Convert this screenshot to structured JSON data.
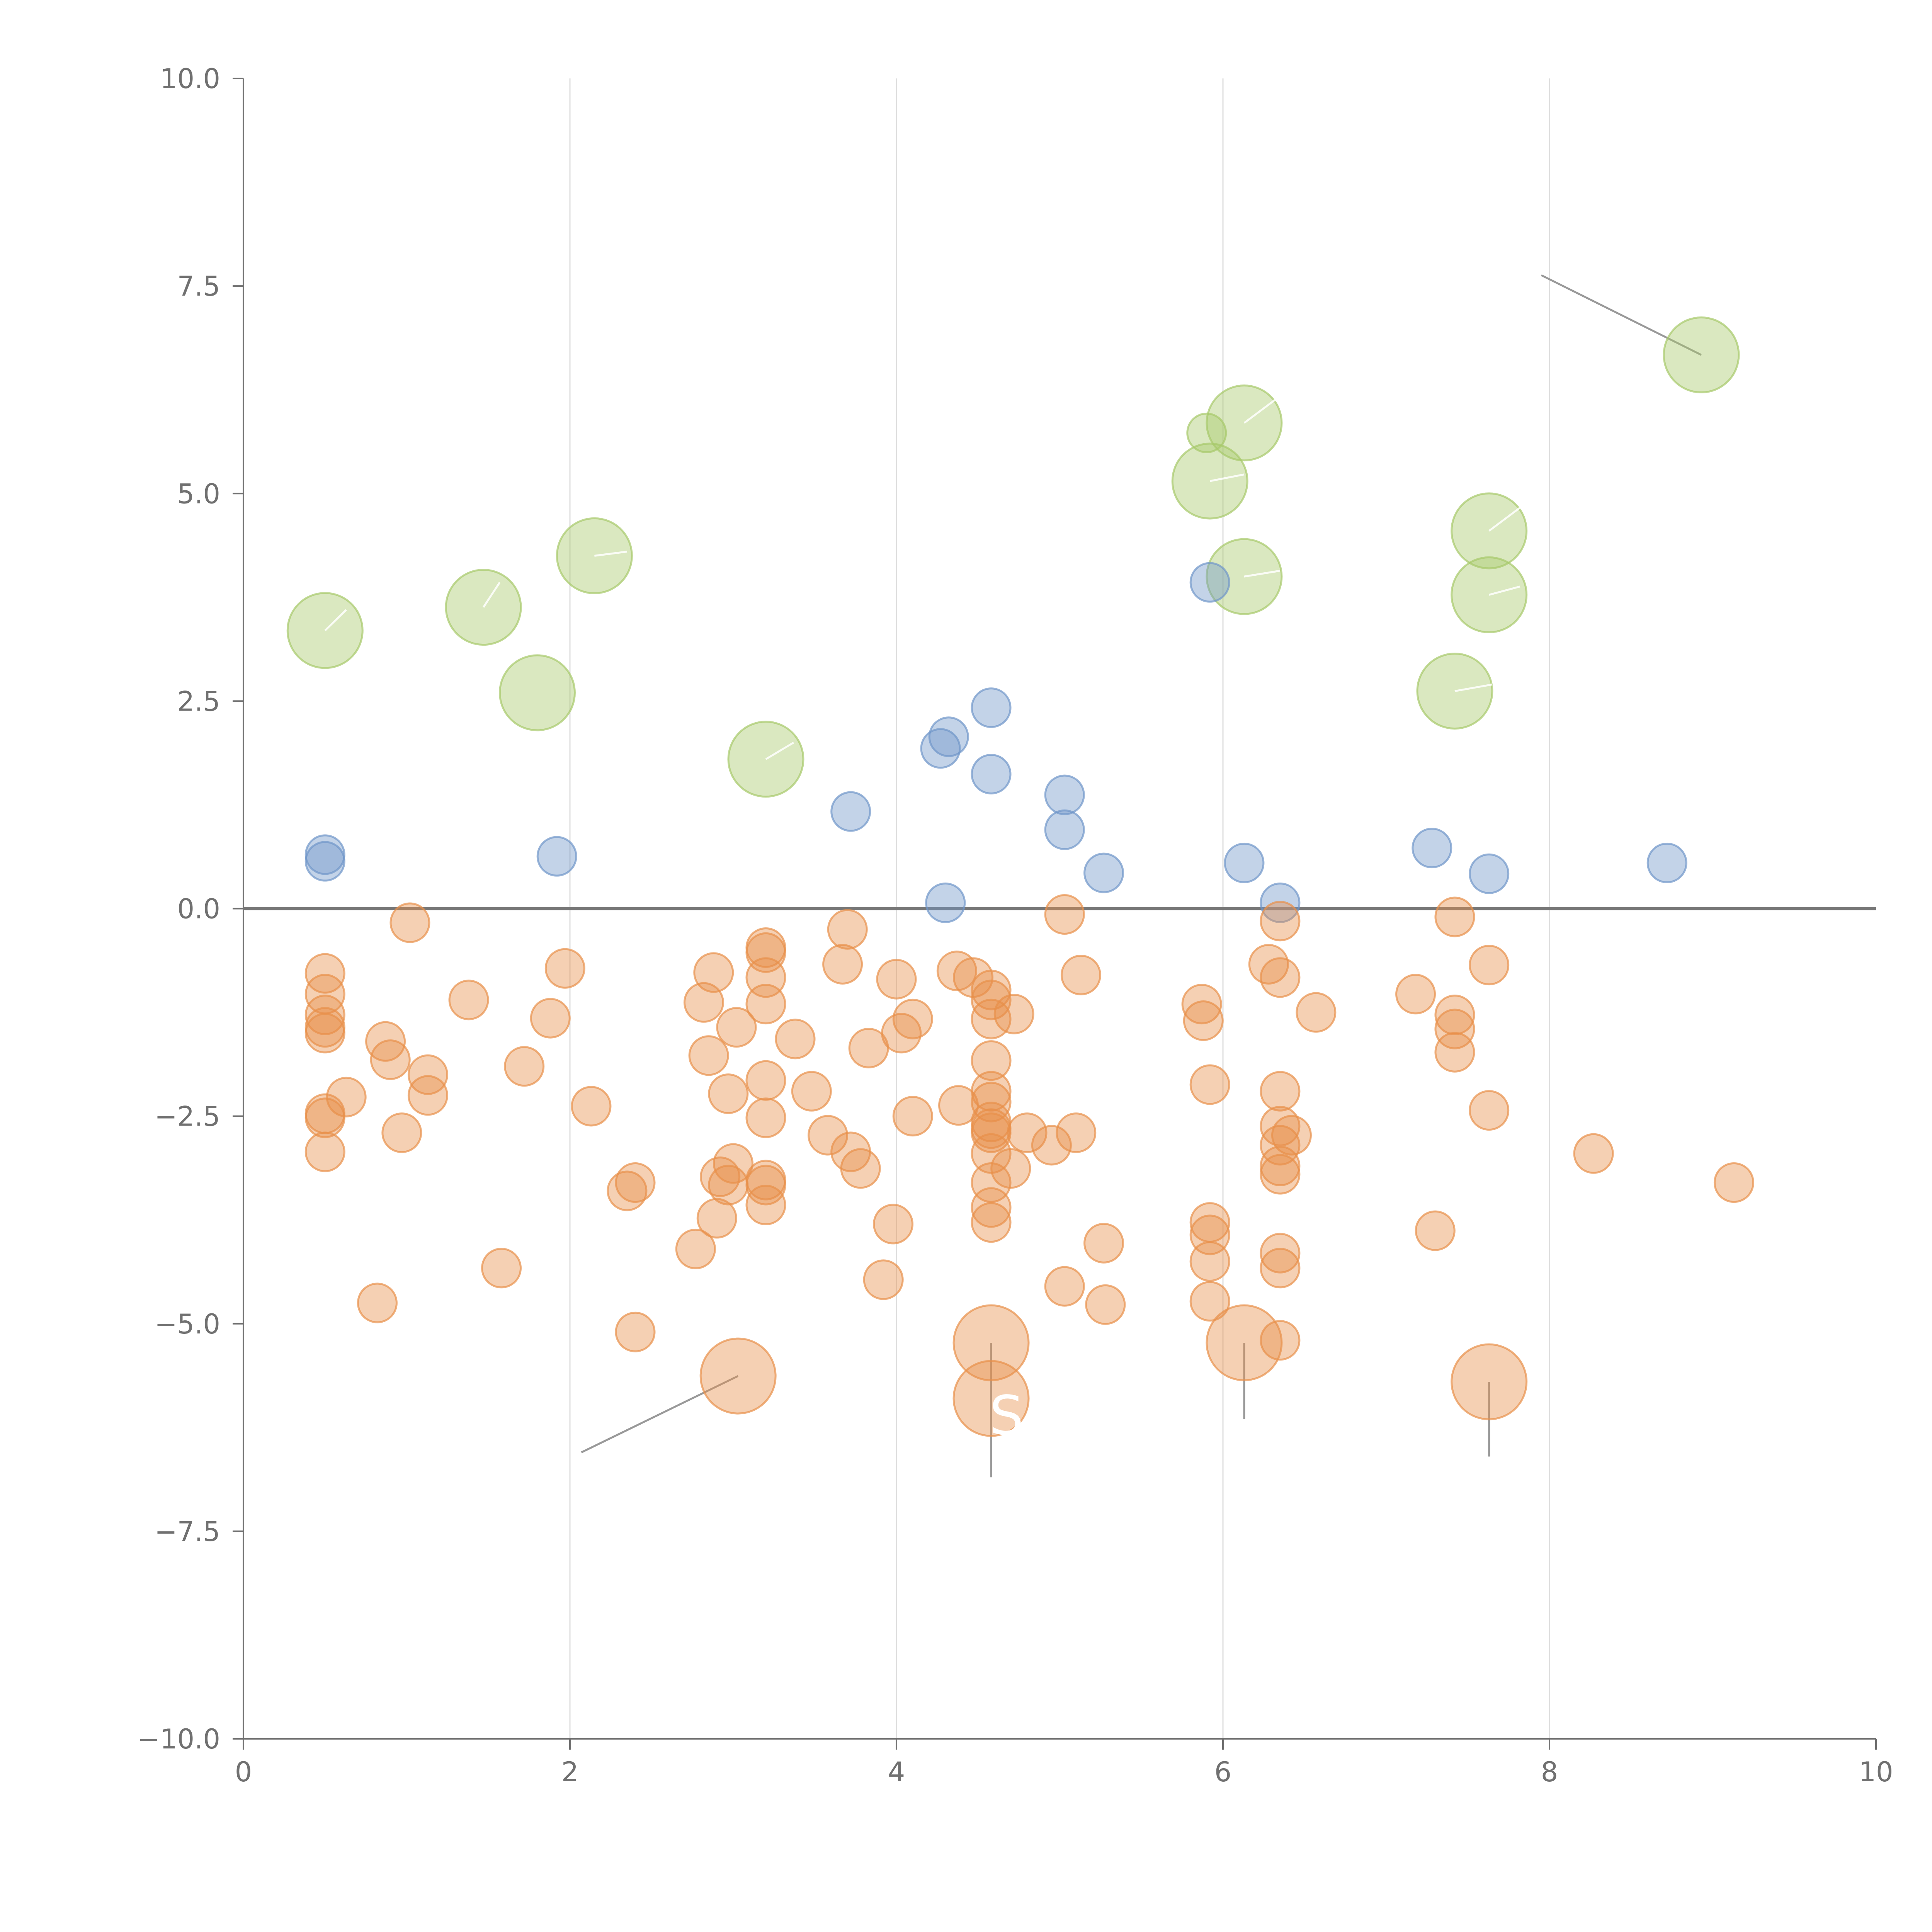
{
  "chart_data": {
    "type": "scatter",
    "title": "",
    "xlabel": "",
    "ylabel": "",
    "xlim": [
      0,
      10
    ],
    "ylim": [
      -10,
      10
    ],
    "x_ticks": [
      "0",
      "2",
      "4",
      "6",
      "8",
      "10"
    ],
    "y_ticks": [
      "−10.0",
      "−7.5",
      "−5.0",
      "−2.5",
      "0.0",
      "2.5",
      "5.0",
      "7.5",
      "10.0"
    ],
    "x_tick_values": [
      0,
      2,
      4,
      6,
      8,
      10
    ],
    "y_tick_values": [
      -10,
      -7.5,
      -5,
      -2.5,
      0,
      2.5,
      5,
      7.5,
      10
    ],
    "vertical_gridlines": [
      2,
      4,
      6,
      8
    ],
    "reference_line_y": 0,
    "colors": {
      "green": "#a6c96a",
      "blue": "#6f95c9",
      "orange": "#e8904a",
      "axis": "#707070",
      "grid": "#dddddd",
      "zero_line": "#777777"
    },
    "series": [
      {
        "color": "green",
        "size": "large",
        "points": [
          {
            "x": 0.5,
            "y": 3.35
          },
          {
            "x": 1.47,
            "y": 3.63
          },
          {
            "x": 1.8,
            "y": 2.6
          },
          {
            "x": 2.15,
            "y": 4.25
          },
          {
            "x": 3.2,
            "y": 1.8
          },
          {
            "x": 5.92,
            "y": 5.15
          },
          {
            "x": 6.13,
            "y": 5.85
          },
          {
            "x": 6.13,
            "y": 4.0
          },
          {
            "x": 7.42,
            "y": 2.62
          },
          {
            "x": 7.63,
            "y": 4.55
          },
          {
            "x": 7.63,
            "y": 3.78
          },
          {
            "x": 8.93,
            "y": 6.67
          }
        ]
      },
      {
        "color": "green",
        "size": "small",
        "points": [
          {
            "x": 5.9,
            "y": 5.73
          }
        ]
      },
      {
        "color": "blue",
        "size": "small",
        "points": [
          {
            "x": 0.5,
            "y": 0.65
          },
          {
            "x": 0.5,
            "y": 0.57
          },
          {
            "x": 1.92,
            "y": 0.63
          },
          {
            "x": 3.72,
            "y": 1.17
          },
          {
            "x": 4.27,
            "y": 1.93
          },
          {
            "x": 4.32,
            "y": 2.07
          },
          {
            "x": 4.3,
            "y": 0.07
          },
          {
            "x": 4.58,
            "y": 2.42
          },
          {
            "x": 4.58,
            "y": 1.62
          },
          {
            "x": 5.03,
            "y": 1.37
          },
          {
            "x": 5.03,
            "y": 0.95
          },
          {
            "x": 5.27,
            "y": 0.43
          },
          {
            "x": 5.92,
            "y": 3.93
          },
          {
            "x": 6.13,
            "y": 0.55
          },
          {
            "x": 6.35,
            "y": 0.07
          },
          {
            "x": 7.28,
            "y": 0.73
          },
          {
            "x": 7.63,
            "y": 0.42
          },
          {
            "x": 8.72,
            "y": 0.55
          }
        ]
      },
      {
        "color": "orange",
        "size": "small",
        "points": [
          {
            "x": 0.5,
            "y": -0.78
          },
          {
            "x": 0.5,
            "y": -1.03
          },
          {
            "x": 0.5,
            "y": -1.28
          },
          {
            "x": 0.5,
            "y": -1.43
          },
          {
            "x": 0.5,
            "y": -1.5
          },
          {
            "x": 0.5,
            "y": -2.47
          },
          {
            "x": 0.5,
            "y": -2.52
          },
          {
            "x": 0.5,
            "y": -2.93
          },
          {
            "x": 0.63,
            "y": -2.27
          },
          {
            "x": 0.82,
            "y": -4.75
          },
          {
            "x": 0.87,
            "y": -1.6
          },
          {
            "x": 0.9,
            "y": -1.82
          },
          {
            "x": 0.97,
            "y": -2.7
          },
          {
            "x": 1.02,
            "y": -0.17
          },
          {
            "x": 1.13,
            "y": -2.0
          },
          {
            "x": 1.13,
            "y": -2.25
          },
          {
            "x": 1.38,
            "y": -1.1
          },
          {
            "x": 1.58,
            "y": -4.33
          },
          {
            "x": 1.72,
            "y": -1.9
          },
          {
            "x": 1.88,
            "y": -1.32
          },
          {
            "x": 1.97,
            "y": -0.72
          },
          {
            "x": 2.13,
            "y": -2.38
          },
          {
            "x": 2.35,
            "y": -3.4
          },
          {
            "x": 2.4,
            "y": -3.3
          },
          {
            "x": 2.4,
            "y": -5.1
          },
          {
            "x": 2.77,
            "y": -4.1
          },
          {
            "x": 2.82,
            "y": -1.13
          },
          {
            "x": 2.85,
            "y": -1.77
          },
          {
            "x": 2.88,
            "y": -0.77
          },
          {
            "x": 2.9,
            "y": -3.73
          },
          {
            "x": 2.92,
            "y": -3.23
          },
          {
            "x": 2.97,
            "y": -2.23
          },
          {
            "x": 2.97,
            "y": -3.33
          },
          {
            "x": 3.0,
            "y": -3.07
          },
          {
            "x": 3.02,
            "y": -1.43
          },
          {
            "x": 3.2,
            "y": -0.47
          },
          {
            "x": 3.2,
            "y": -0.53
          },
          {
            "x": 3.2,
            "y": -0.83
          },
          {
            "x": 3.2,
            "y": -1.15
          },
          {
            "x": 3.2,
            "y": -2.07
          },
          {
            "x": 3.2,
            "y": -2.52
          },
          {
            "x": 3.2,
            "y": -3.27
          },
          {
            "x": 3.2,
            "y": -3.33
          },
          {
            "x": 3.2,
            "y": -3.57
          },
          {
            "x": 3.38,
            "y": -1.57
          },
          {
            "x": 3.48,
            "y": -2.2
          },
          {
            "x": 3.58,
            "y": -2.73
          },
          {
            "x": 3.67,
            "y": -0.67
          },
          {
            "x": 3.7,
            "y": -0.25
          },
          {
            "x": 3.72,
            "y": -2.93
          },
          {
            "x": 3.78,
            "y": -3.13
          },
          {
            "x": 3.83,
            "y": -1.68
          },
          {
            "x": 3.92,
            "y": -4.47
          },
          {
            "x": 3.98,
            "y": -3.8
          },
          {
            "x": 4.0,
            "y": -0.85
          },
          {
            "x": 4.03,
            "y": -1.5
          },
          {
            "x": 4.1,
            "y": -1.33
          },
          {
            "x": 4.1,
            "y": -2.5
          },
          {
            "x": 4.37,
            "y": -0.75
          },
          {
            "x": 4.38,
            "y": -2.37
          },
          {
            "x": 4.47,
            "y": -0.83
          },
          {
            "x": 4.58,
            "y": -0.98
          },
          {
            "x": 4.58,
            "y": -1.1
          },
          {
            "x": 4.58,
            "y": -1.33
          },
          {
            "x": 4.58,
            "y": -1.83
          },
          {
            "x": 4.58,
            "y": -2.2
          },
          {
            "x": 4.58,
            "y": -2.33
          },
          {
            "x": 4.58,
            "y": -2.57
          },
          {
            "x": 4.58,
            "y": -2.65
          },
          {
            "x": 4.58,
            "y": -2.7
          },
          {
            "x": 4.58,
            "y": -2.95
          },
          {
            "x": 4.58,
            "y": -3.3
          },
          {
            "x": 4.58,
            "y": -3.6
          },
          {
            "x": 4.58,
            "y": -3.78
          },
          {
            "x": 4.72,
            "y": -1.27
          },
          {
            "x": 4.7,
            "y": -3.13
          },
          {
            "x": 4.8,
            "y": -2.7
          },
          {
            "x": 4.95,
            "y": -2.85
          },
          {
            "x": 5.03,
            "y": -0.07
          },
          {
            "x": 5.03,
            "y": -4.55
          },
          {
            "x": 5.1,
            "y": -2.7
          },
          {
            "x": 5.13,
            "y": -0.8
          },
          {
            "x": 5.27,
            "y": -4.03
          },
          {
            "x": 5.28,
            "y": -4.77
          },
          {
            "x": 5.87,
            "y": -1.15
          },
          {
            "x": 5.88,
            "y": -1.35
          },
          {
            "x": 5.92,
            "y": -2.12
          },
          {
            "x": 5.92,
            "y": -3.78
          },
          {
            "x": 5.92,
            "y": -3.93
          },
          {
            "x": 5.92,
            "y": -4.25
          },
          {
            "x": 5.92,
            "y": -4.73
          },
          {
            "x": 6.28,
            "y": -0.67
          },
          {
            "x": 6.35,
            "y": -0.15
          },
          {
            "x": 6.35,
            "y": -0.83
          },
          {
            "x": 6.35,
            "y": -2.2
          },
          {
            "x": 6.35,
            "y": -2.62
          },
          {
            "x": 6.35,
            "y": -2.85
          },
          {
            "x": 6.35,
            "y": -3.1
          },
          {
            "x": 6.35,
            "y": -3.2
          },
          {
            "x": 6.35,
            "y": -4.15
          },
          {
            "x": 6.35,
            "y": -4.33
          },
          {
            "x": 6.35,
            "y": -5.2
          },
          {
            "x": 6.42,
            "y": -2.73
          },
          {
            "x": 6.57,
            "y": -1.25
          },
          {
            "x": 7.18,
            "y": -1.03
          },
          {
            "x": 7.3,
            "y": -3.88
          },
          {
            "x": 7.42,
            "y": -0.1
          },
          {
            "x": 7.42,
            "y": -1.28
          },
          {
            "x": 7.42,
            "y": -1.45
          },
          {
            "x": 7.42,
            "y": -1.73
          },
          {
            "x": 7.63,
            "y": -0.68
          },
          {
            "x": 7.63,
            "y": -2.43
          },
          {
            "x": 8.27,
            "y": -2.95
          },
          {
            "x": 9.13,
            "y": -3.3
          }
        ]
      },
      {
        "color": "orange",
        "size": "large",
        "points": [
          {
            "x": 3.03,
            "y": -5.63
          },
          {
            "x": 4.58,
            "y": -5.23
          },
          {
            "x": 4.58,
            "y": -5.9
          },
          {
            "x": 6.13,
            "y": -5.23
          },
          {
            "x": 7.63,
            "y": -5.7
          }
        ]
      }
    ],
    "leader_lines": [
      {
        "from": [
          8.93,
          6.67
        ],
        "to": [
          7.95,
          7.63
        ],
        "style": "gray"
      },
      {
        "from": [
          3.03,
          -5.63
        ],
        "to": [
          2.07,
          -6.55
        ],
        "style": "gray"
      },
      {
        "from": [
          4.58,
          -5.23
        ],
        "to": [
          4.58,
          -6.85
        ],
        "style": "gray"
      },
      {
        "from": [
          6.13,
          -5.23
        ],
        "to": [
          6.13,
          -6.15
        ],
        "style": "gray"
      },
      {
        "from": [
          7.63,
          -5.7
        ],
        "to": [
          7.63,
          -6.6
        ],
        "style": "gray"
      },
      {
        "from": [
          0.5,
          3.35
        ],
        "to": [
          0.63,
          3.6
        ],
        "style": "white"
      },
      {
        "from": [
          1.47,
          3.63
        ],
        "to": [
          1.57,
          3.93
        ],
        "style": "white"
      },
      {
        "from": [
          2.15,
          4.25
        ],
        "to": [
          2.35,
          4.3
        ],
        "style": "white"
      },
      {
        "from": [
          3.2,
          1.8
        ],
        "to": [
          3.37,
          2.0
        ],
        "style": "white"
      },
      {
        "from": [
          5.92,
          5.15
        ],
        "to": [
          6.13,
          5.23
        ],
        "style": "white"
      },
      {
        "from": [
          6.13,
          5.85
        ],
        "to": [
          6.32,
          6.13
        ],
        "style": "white"
      },
      {
        "from": [
          6.13,
          4.0
        ],
        "to": [
          6.35,
          4.07
        ],
        "style": "white"
      },
      {
        "from": [
          7.42,
          2.62
        ],
        "to": [
          7.65,
          2.7
        ],
        "style": "white"
      },
      {
        "from": [
          7.63,
          4.55
        ],
        "to": [
          7.82,
          4.83
        ],
        "style": "white"
      },
      {
        "from": [
          7.63,
          3.78
        ],
        "to": [
          7.82,
          3.88
        ],
        "style": "white"
      }
    ],
    "annotations": [
      {
        "text": "S",
        "x": 4.58,
        "y": -6.1
      }
    ]
  }
}
